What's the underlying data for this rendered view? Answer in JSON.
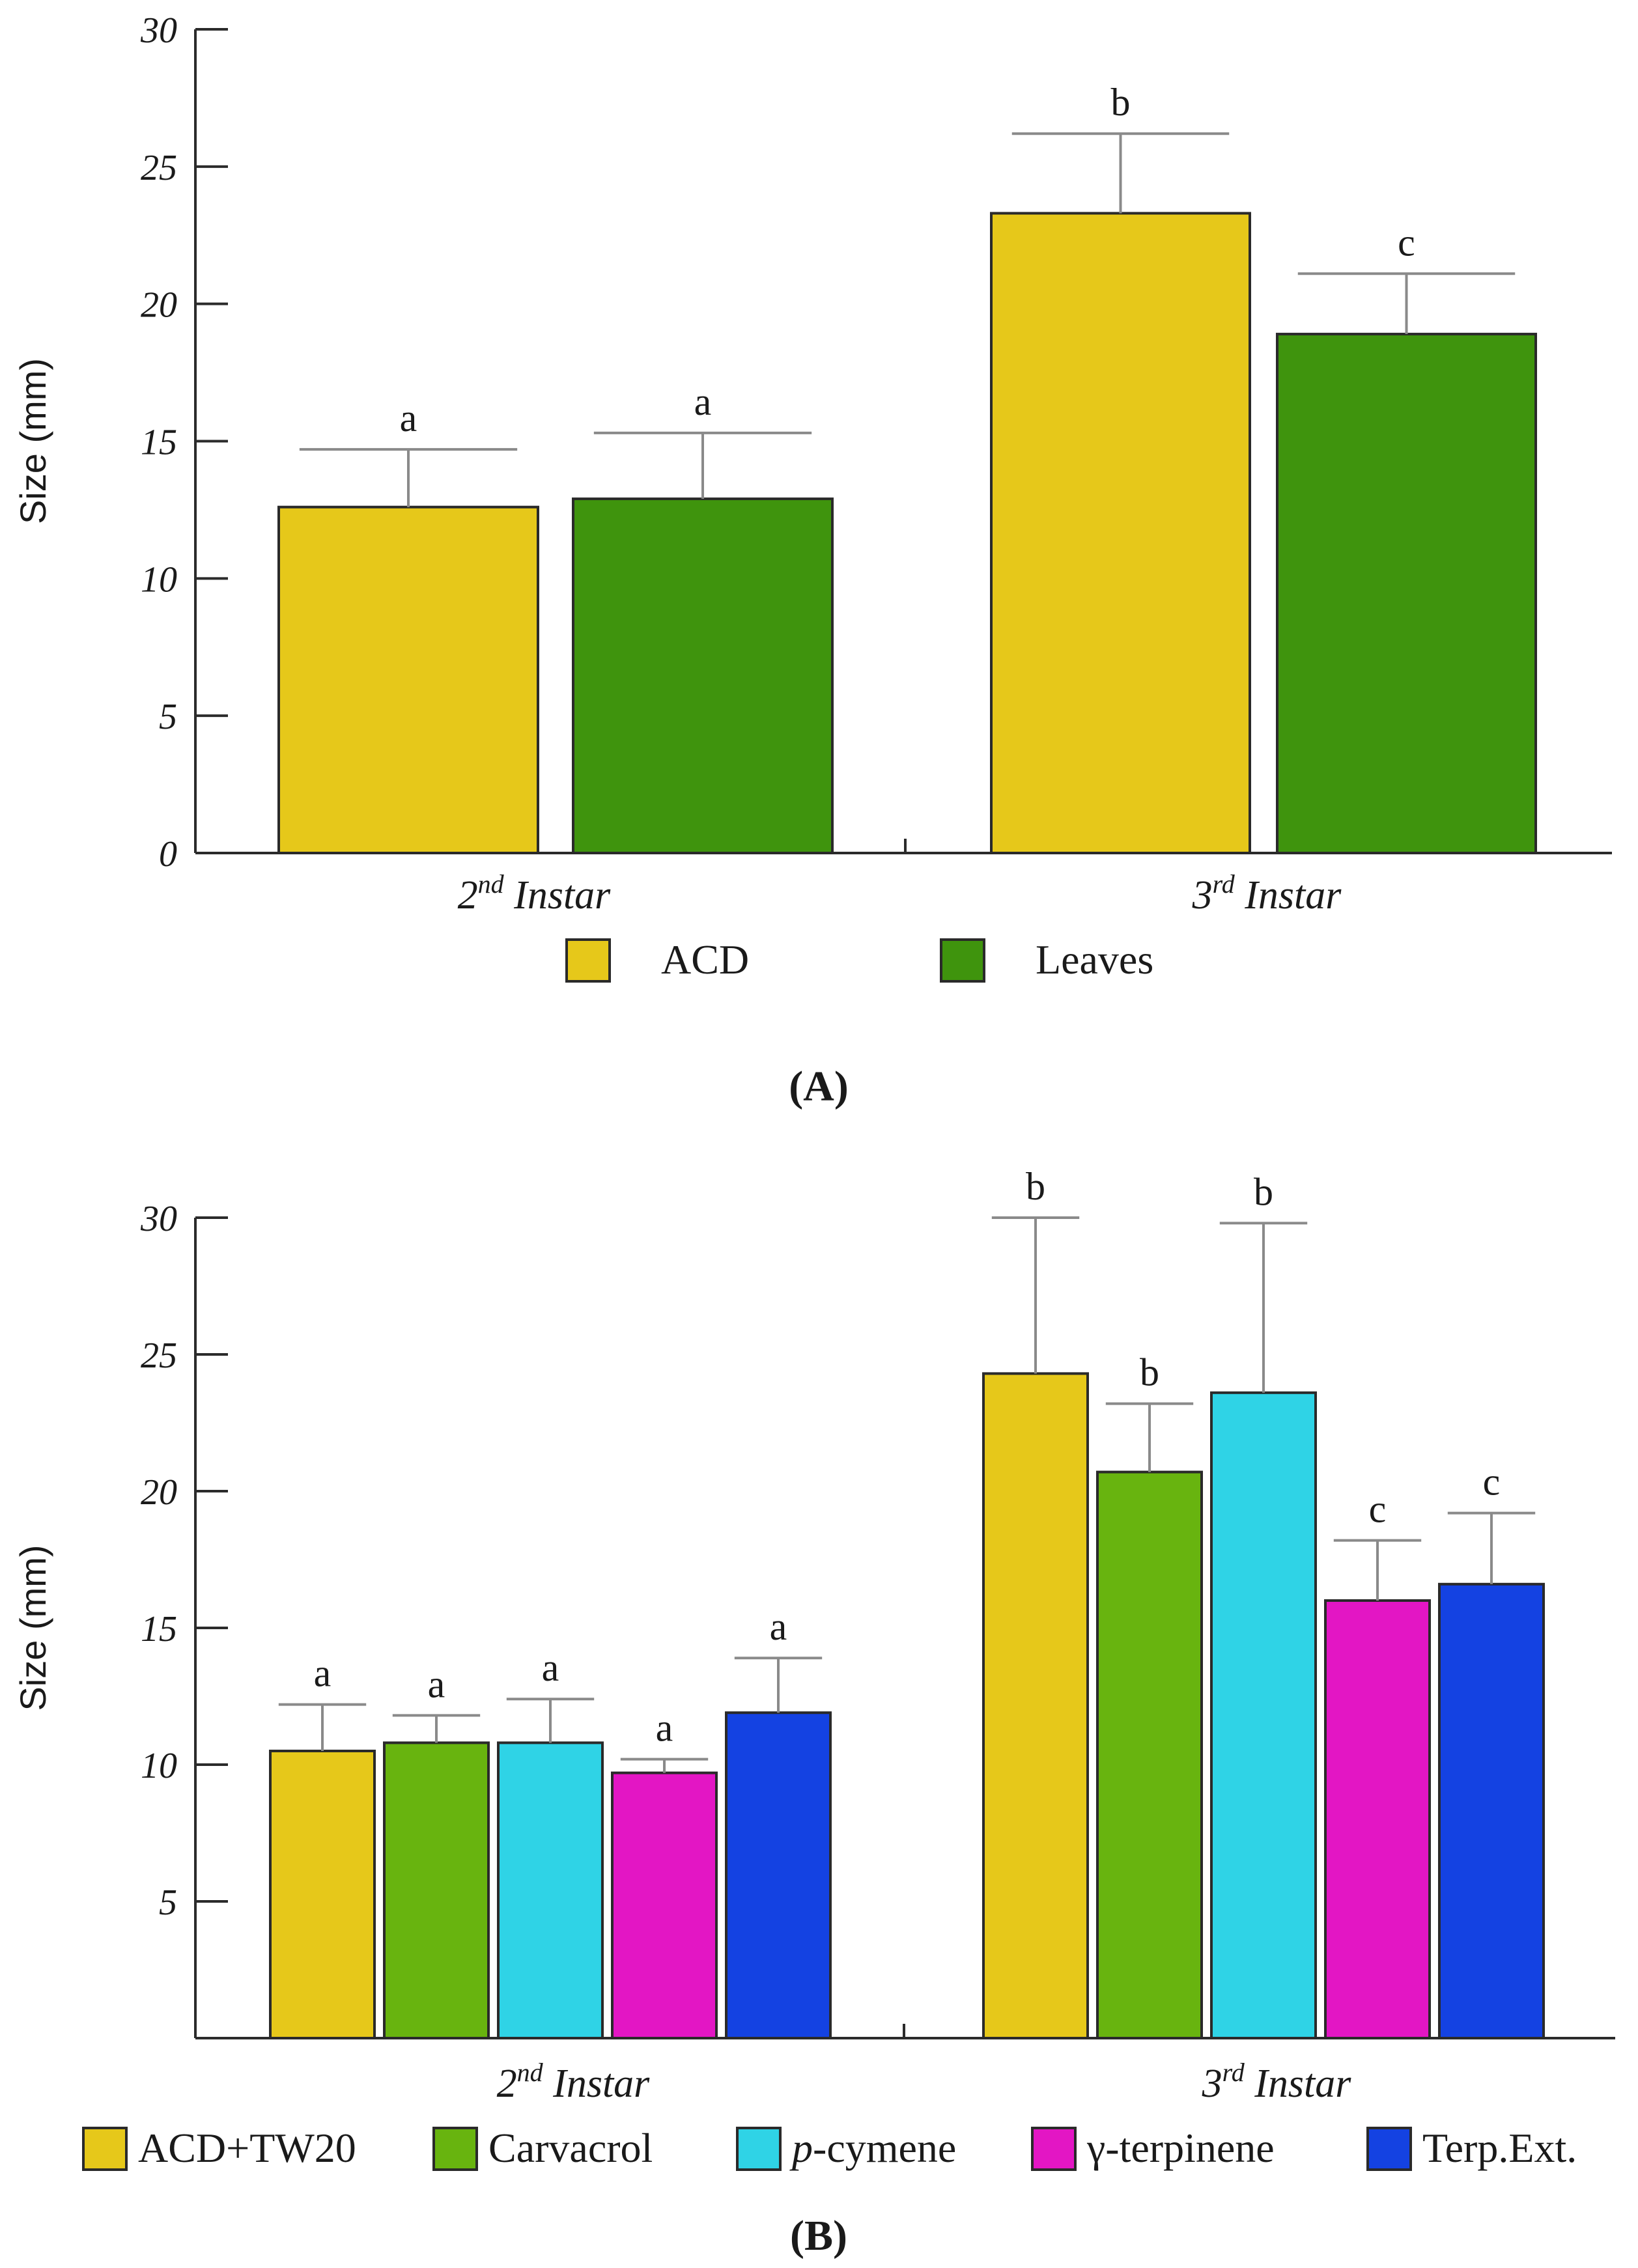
{
  "chart_data": [
    {
      "panel_label": "(A)",
      "type": "bar",
      "ylabel": "Size (mm)",
      "ylim": [
        0,
        30
      ],
      "yticks": [
        0,
        5,
        10,
        15,
        20,
        25,
        30
      ],
      "categories": [
        {
          "base": "2",
          "sup": "nd",
          "rest": " Instar"
        },
        {
          "base": "3",
          "sup": "rd",
          "rest": " Instar"
        }
      ],
      "series": [
        {
          "name": "ACD",
          "color": "#e6c81a",
          "values": [
            12.6,
            23.3
          ],
          "errors": [
            2.1,
            2.9
          ],
          "letters": [
            "a",
            "b"
          ]
        },
        {
          "name": "Leaves",
          "color": "#3f940d",
          "values": [
            12.9,
            18.9
          ],
          "errors": [
            2.4,
            2.2
          ],
          "letters": [
            "a",
            "c"
          ]
        }
      ],
      "legend_position": "bottom"
    },
    {
      "panel_label": "(B)",
      "type": "bar",
      "ylabel": "Size (mm)",
      "ylim": [
        0,
        30
      ],
      "yticks": [
        5,
        10,
        15,
        20,
        25,
        30
      ],
      "categories": [
        {
          "base": "2",
          "sup": "nd",
          "rest": " Instar"
        },
        {
          "base": "3",
          "sup": "rd",
          "rest": " Instar"
        }
      ],
      "series": [
        {
          "name": "ACD+TW20",
          "label_parts": [
            {
              "t": "ACD+TW20",
              "italic": false
            }
          ],
          "color": "#e6c81a",
          "values": [
            10.5,
            24.3
          ],
          "errors": [
            1.7,
            5.7
          ],
          "letters": [
            "a",
            "b"
          ]
        },
        {
          "name": "Carvacrol",
          "label_parts": [
            {
              "t": "Carvacrol",
              "italic": false
            }
          ],
          "color": "#68b40f",
          "values": [
            10.8,
            20.7
          ],
          "errors": [
            1.0,
            2.5
          ],
          "letters": [
            "a",
            "b"
          ]
        },
        {
          "name": "p-cymene",
          "label_parts": [
            {
              "t": "p",
              "italic": true
            },
            {
              "t": "-cymene",
              "italic": false
            }
          ],
          "color": "#2fd3e6",
          "values": [
            10.8,
            23.6
          ],
          "errors": [
            1.6,
            6.2
          ],
          "letters": [
            "a",
            "b"
          ]
        },
        {
          "name": "γ-terpinene",
          "label_parts": [
            {
              "t": "γ-terpinene",
              "italic": false
            }
          ],
          "color": "#e316c4",
          "values": [
            9.7,
            16.0
          ],
          "errors": [
            0.5,
            2.2
          ],
          "letters": [
            "a",
            "c"
          ]
        },
        {
          "name": "Terp.Ext.",
          "label_parts": [
            {
              "t": "Terp.Ext.",
              "italic": false
            }
          ],
          "color": "#1442e2",
          "values": [
            11.9,
            16.6
          ],
          "errors": [
            2.0,
            2.6
          ],
          "letters": [
            "a",
            "c"
          ]
        }
      ],
      "legend_position": "bottom"
    }
  ]
}
